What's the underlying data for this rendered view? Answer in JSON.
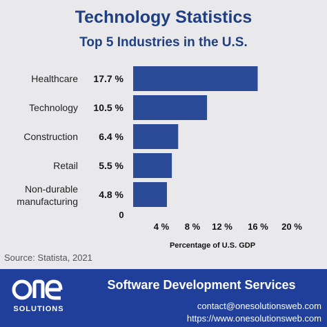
{
  "chart_data": {
    "type": "bar",
    "orientation": "horizontal",
    "title": "Technology Statistics",
    "subtitle": "Top 5 Industries in the U.S.",
    "categories": [
      "Healthcare",
      "Technology",
      "Construction",
      "Retail",
      "Non-durable manufacturing"
    ],
    "category_lines": [
      [
        "Healthcare"
      ],
      [
        "Technology"
      ],
      [
        "Construction"
      ],
      [
        "Retail"
      ],
      [
        "Non-durable",
        "manufacturing"
      ]
    ],
    "values": [
      17.7,
      10.5,
      6.4,
      5.5,
      4.8
    ],
    "value_labels": [
      "17.7 %",
      "10.5 %",
      "6.4 %",
      "5.5 %",
      "4.8 %"
    ],
    "xlabel": "Percentage of U.S. GDP",
    "xlim": [
      0,
      20
    ],
    "x_tick_values": [
      4,
      8,
      12,
      16,
      20
    ],
    "x_tick_labels": [
      "4 %",
      "8 %",
      "12 %",
      "16 %",
      "20 %"
    ],
    "zero_label": "0",
    "grid": false,
    "bar_color": "#2c4b96"
  },
  "source": "Source: Statista, 2021",
  "footer": {
    "logo_mark": "ONE",
    "logo_text": "SOLUTIONS",
    "services": "Software Development Services",
    "contact": "contact@onesolutionsweb.com",
    "website": "https://www.onesolutionsweb.com"
  },
  "colors": {
    "background": "#e9e9eb",
    "title": "#1f3f82",
    "footer": "#1f3f9a"
  }
}
